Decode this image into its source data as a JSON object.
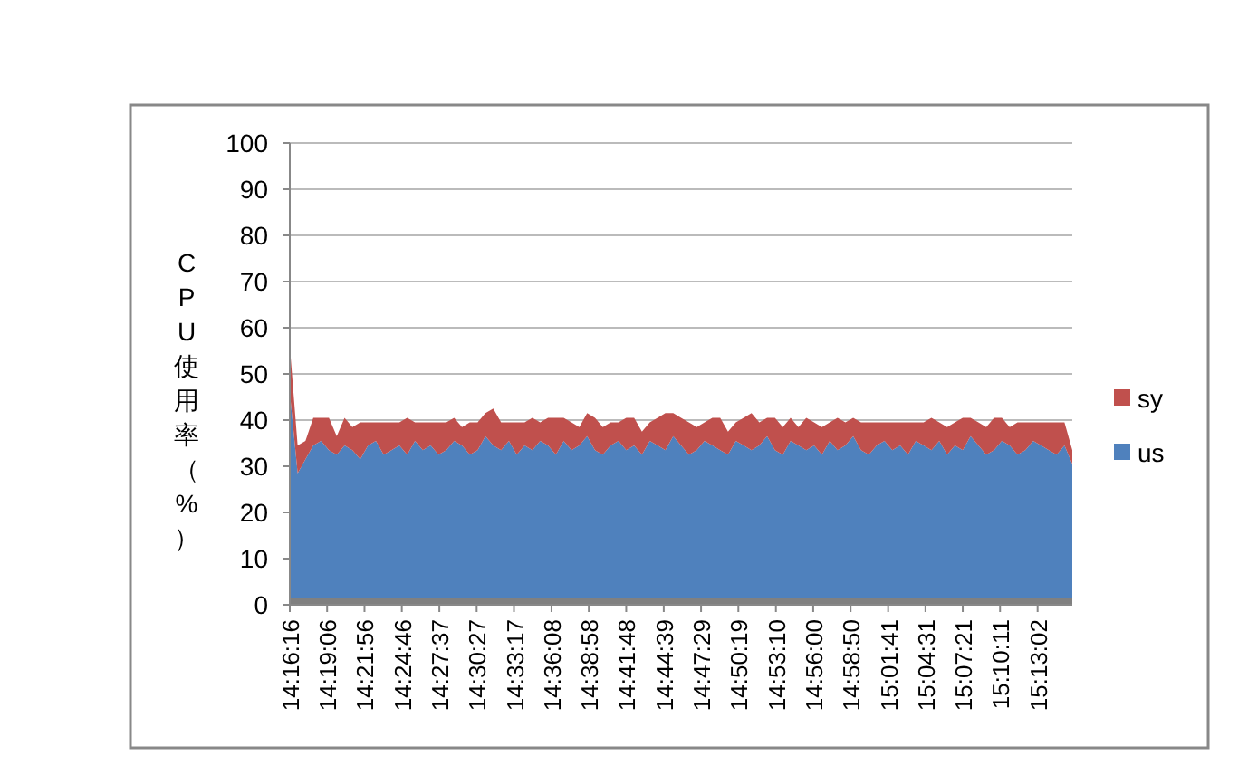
{
  "chart_data": {
    "type": "area",
    "stacked": true,
    "ylabel": "CPU使用率（%）",
    "grid": "y",
    "legend": "right",
    "xlim": [
      14.2711,
      15.2611
    ],
    "ylim": [
      0,
      100
    ],
    "yticks": [
      0,
      10,
      20,
      30,
      40,
      50,
      60,
      70,
      80,
      90,
      100
    ],
    "xticks": [
      {
        "value": 14.2711,
        "label": "14:16:16"
      },
      {
        "value": 14.3183,
        "label": "14:19:06"
      },
      {
        "value": 14.3656,
        "label": "14:21:56"
      },
      {
        "value": 14.4128,
        "label": "14:24:46"
      },
      {
        "value": 14.4603,
        "label": "14:27:37"
      },
      {
        "value": 14.5075,
        "label": "14:30:27"
      },
      {
        "value": 14.5547,
        "label": "14:33:17"
      },
      {
        "value": 14.6022,
        "label": "14:36:08"
      },
      {
        "value": 14.6494,
        "label": "14:38:58"
      },
      {
        "value": 14.6967,
        "label": "14:41:48"
      },
      {
        "value": 14.7442,
        "label": "14:44:39"
      },
      {
        "value": 14.7914,
        "label": "14:47:29"
      },
      {
        "value": 14.8386,
        "label": "14:50:19"
      },
      {
        "value": 14.8861,
        "label": "14:53:10"
      },
      {
        "value": 14.9333,
        "label": "14:56:00"
      },
      {
        "value": 14.9806,
        "label": "14:58:50"
      },
      {
        "value": 15.0281,
        "label": "15:01:41"
      },
      {
        "value": 15.0753,
        "label": "15:04:31"
      },
      {
        "value": 15.1225,
        "label": "15:07:21"
      },
      {
        "value": 15.1697,
        "label": "15:10:11"
      },
      {
        "value": 15.2172,
        "label": "15:13:02"
      }
    ],
    "x": [
      14.2711,
      14.281,
      14.2909,
      14.3008,
      14.3107,
      14.3206,
      14.3305,
      14.3404,
      14.3503,
      14.3602,
      14.3701,
      14.38,
      14.3899,
      14.3998,
      14.4097,
      14.4196,
      14.4295,
      14.4394,
      14.4493,
      14.4592,
      14.4691,
      14.479,
      14.4889,
      14.4988,
      14.5087,
      14.5186,
      14.5285,
      14.5384,
      14.5483,
      14.5582,
      14.5681,
      14.578,
      14.5879,
      14.5978,
      14.6077,
      14.6176,
      14.6275,
      14.6374,
      14.6473,
      14.6572,
      14.6671,
      14.677,
      14.6869,
      14.6968,
      14.7067,
      14.7166,
      14.7265,
      14.7364,
      14.7463,
      14.7562,
      14.7661,
      14.776,
      14.7859,
      14.7958,
      14.8057,
      14.8156,
      14.8255,
      14.8354,
      14.8453,
      14.8552,
      14.8651,
      14.875,
      14.8849,
      14.8948,
      14.9047,
      14.9146,
      14.9245,
      14.9344,
      14.9443,
      14.9542,
      14.9641,
      14.974,
      14.9839,
      14.9938,
      15.0037,
      15.0136,
      15.0235,
      15.0334,
      15.0433,
      15.0532,
      15.0631,
      15.073,
      15.0829,
      15.0928,
      15.1027,
      15.1126,
      15.1225,
      15.1324,
      15.1423,
      15.1522,
      15.1621,
      15.172,
      15.1819,
      15.1918,
      15.2017,
      15.2116,
      15.2215,
      15.2314,
      15.2413,
      15.2512,
      15.2611
    ],
    "series": [
      {
        "color": "#808080",
        "values": [
          1.5,
          1.5,
          1.5,
          1.5,
          1.5,
          1.5,
          1.5,
          1.5,
          1.5,
          1.5,
          1.5,
          1.5,
          1.5,
          1.5,
          1.5,
          1.5,
          1.5,
          1.5,
          1.5,
          1.5,
          1.5,
          1.5,
          1.5,
          1.5,
          1.5,
          1.5,
          1.5,
          1.5,
          1.5,
          1.5,
          1.5,
          1.5,
          1.5,
          1.5,
          1.5,
          1.5,
          1.5,
          1.5,
          1.5,
          1.5,
          1.5,
          1.5,
          1.5,
          1.5,
          1.5,
          1.5,
          1.5,
          1.5,
          1.5,
          1.5,
          1.5,
          1.5,
          1.5,
          1.5,
          1.5,
          1.5,
          1.5,
          1.5,
          1.5,
          1.5,
          1.5,
          1.5,
          1.5,
          1.5,
          1.5,
          1.5,
          1.5,
          1.5,
          1.5,
          1.5,
          1.5,
          1.5,
          1.5,
          1.5,
          1.5,
          1.5,
          1.5,
          1.5,
          1.5,
          1.5,
          1.5,
          1.5,
          1.5,
          1.5,
          1.5,
          1.5,
          1.5,
          1.5,
          1.5,
          1.5,
          1.5,
          1.5,
          1.5,
          1.5,
          1.5,
          1.5,
          1.5,
          1.5,
          1.5,
          1.5,
          1.5
        ]
      },
      {
        "name": "us",
        "color": "#4f81bd",
        "values": [
          44.5,
          27,
          30,
          33,
          34,
          32,
          31,
          33,
          32,
          30,
          33,
          34,
          31,
          32,
          33,
          31,
          34,
          32,
          33,
          31,
          32,
          34,
          33,
          31,
          32,
          35,
          33,
          32,
          34,
          31,
          33,
          32,
          34,
          33,
          31,
          34,
          32,
          33,
          35,
          32,
          31,
          33,
          34,
          32,
          33,
          31,
          34,
          33,
          32,
          35,
          33,
          31,
          32,
          34,
          33,
          32,
          31,
          34,
          33,
          32,
          33,
          35,
          32,
          31,
          34,
          33,
          32,
          33,
          31,
          34,
          32,
          33,
          35,
          32,
          31,
          33,
          34,
          32,
          33,
          31,
          34,
          33,
          32,
          34,
          31,
          33,
          32,
          35,
          33,
          31,
          32,
          34,
          33,
          31,
          32,
          34,
          33,
          32,
          31,
          33,
          29
        ]
      },
      {
        "name": "sy",
        "color": "#c0504d",
        "values": [
          10,
          6,
          4,
          6,
          5,
          7,
          4,
          6,
          5,
          8,
          5,
          4,
          7,
          6,
          5,
          8,
          4,
          6,
          5,
          7,
          6,
          5,
          4,
          7,
          6,
          5,
          8,
          6,
          4,
          7,
          5,
          7,
          4,
          6,
          8,
          5,
          6,
          4,
          5,
          7,
          6,
          5,
          4,
          7,
          6,
          5,
          4,
          6,
          8,
          5,
          6,
          7,
          5,
          4,
          6,
          7,
          5,
          4,
          6,
          8,
          5,
          4,
          7,
          6,
          5,
          4,
          7,
          5,
          6,
          4,
          7,
          5,
          4,
          6,
          7,
          5,
          4,
          6,
          5,
          7,
          4,
          5,
          7,
          4,
          6,
          5,
          7,
          4,
          5,
          6,
          7,
          5,
          4,
          7,
          6,
          4,
          5,
          6,
          7,
          5,
          3
        ]
      }
    ]
  }
}
